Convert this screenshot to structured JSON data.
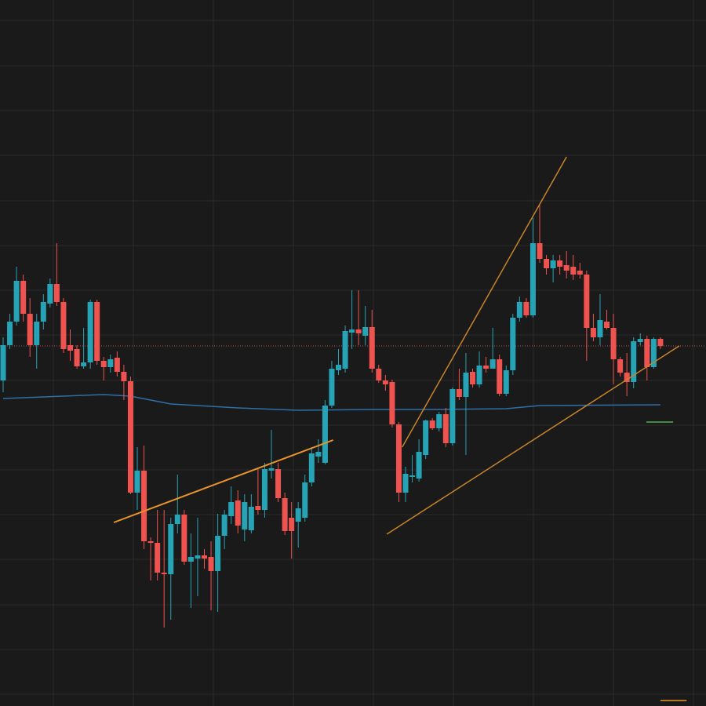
{
  "chart_data": {
    "type": "candlestick",
    "up_color": "#26a3b5",
    "down_color": "#ef5350",
    "ylim": [
      0,
      900
    ],
    "yticks": [
      15,
      72,
      129,
      187,
      244,
      301,
      358,
      415,
      473,
      530,
      587,
      644,
      702,
      759,
      816,
      874
    ],
    "grid": true,
    "open": [
      415,
      460,
      490,
      542,
      500,
      460,
      490,
      513,
      538,
      515,
      460,
      455,
      433,
      438,
      515,
      440,
      432,
      444,
      426,
      414,
      272,
      300,
      210,
      208,
      170,
      168,
      232,
      244,
      184,
      188,
      192,
      190,
      172,
      217,
      242,
      262,
      225,
      224,
      255,
      250,
      300,
      302,
      265,
      240,
      235,
      240,
      285,
      318,
      310,
      383,
      428,
      430,
      476,
      480,
      472,
      483,
      430,
      415,
      413,
      359,
      272,
      292,
      290,
      320,
      364,
      354,
      372,
      335,
      404,
      394,
      426,
      410,
      434,
      430,
      442,
      398,
      428,
      495,
      515,
      498,
      590,
      570,
      558,
      568,
      562,
      560,
      555,
      550,
      482,
      470,
      490,
      482,
      442,
      425,
      413,
      464,
      468,
      432,
      468
    ],
    "high": [
      470,
      500,
      560,
      550,
      520,
      500,
      525,
      545,
      590,
      520,
      480,
      460,
      482,
      518,
      518,
      445,
      448,
      452,
      435,
      420,
      330,
      332,
      215,
      250,
      250,
      240,
      295,
      250,
      220,
      240,
      200,
      210,
      245,
      250,
      280,
      275,
      270,
      270,
      302,
      310,
      352,
      310,
      272,
      260,
      260,
      295,
      330,
      340,
      390,
      440,
      455,
      485,
      530,
      530,
      510,
      505,
      435,
      422,
      416,
      362,
      305,
      320,
      340,
      365,
      367,
      375,
      380,
      406,
      430,
      450,
      430,
      452,
      445,
      482,
      448,
      434,
      500,
      522,
      520,
      622,
      638,
      575,
      575,
      575,
      580,
      575,
      565,
      555,
      500,
      525,
      505,
      500,
      445,
      450,
      470,
      475,
      472,
      470,
      470
    ],
    "low": [
      400,
      455,
      485,
      490,
      445,
      430,
      480,
      508,
      510,
      450,
      440,
      430,
      430,
      430,
      435,
      415,
      425,
      420,
      390,
      270,
      250,
      200,
      160,
      160,
      100,
      110,
      220,
      180,
      125,
      140,
      175,
      122,
      120,
      200,
      232,
      220,
      210,
      220,
      244,
      240,
      290,
      260,
      218,
      188,
      202,
      235,
      280,
      310,
      308,
      380,
      422,
      425,
      455,
      460,
      460,
      425,
      412,
      402,
      355,
      260,
      260,
      285,
      286,
      315,
      352,
      350,
      330,
      332,
      390,
      320,
      406,
      406,
      425,
      430,
      395,
      395,
      422,
      490,
      495,
      495,
      565,
      550,
      540,
      550,
      545,
      543,
      545,
      440,
      465,
      460,
      480,
      410,
      420,
      395,
      405,
      460,
      415,
      430,
      455
    ],
    "close": [
      460,
      490,
      542,
      500,
      460,
      490,
      515,
      538,
      515,
      455,
      453,
      433,
      438,
      515,
      440,
      432,
      442,
      426,
      414,
      272,
      300,
      210,
      208,
      170,
      168,
      232,
      244,
      184,
      190,
      192,
      188,
      172,
      217,
      244,
      260,
      230,
      260,
      254,
      250,
      302,
      303,
      265,
      223,
      223,
      252,
      285,
      322,
      324,
      383,
      430,
      435,
      478,
      480,
      475,
      483,
      430,
      415,
      410,
      359,
      272,
      296,
      294,
      324,
      364,
      354,
      372,
      335,
      404,
      394,
      425,
      410,
      434,
      430,
      442,
      398,
      428,
      495,
      515,
      498,
      590,
      570,
      558,
      568,
      560,
      555,
      550,
      550,
      482,
      470,
      492,
      482,
      442,
      425,
      413,
      465,
      468,
      432,
      468,
      459
    ],
    "moving_average": {
      "color": "#2f6fa8",
      "points": [
        [
          0,
          392
        ],
        [
          15,
          397
        ],
        [
          19,
          395
        ],
        [
          25,
          385
        ],
        [
          35,
          380
        ],
        [
          44,
          377
        ],
        [
          55,
          378
        ],
        [
          64,
          378
        ],
        [
          75,
          379
        ],
        [
          80,
          383
        ],
        [
          98,
          384
        ]
      ]
    },
    "last_price": {
      "value": 459,
      "color": "#c0504d"
    },
    "lines": [
      {
        "color": "#e8962a",
        "points": [
          [
            16.5,
            234
          ],
          [
            49.2,
            339
          ]
        ]
      },
      {
        "color": "#c8842a",
        "points": [
          [
            57.2,
            219
          ],
          [
            100.8,
            459
          ]
        ]
      },
      {
        "color": "#c8842a",
        "points": [
          [
            59.5,
            330
          ],
          [
            84,
            700
          ]
        ]
      },
      {
        "color": "#4caf50",
        "points": [
          [
            95.9,
            362
          ],
          [
            99.9,
            362
          ]
        ]
      },
      {
        "color": "#e8962a",
        "points": [
          [
            98,
            7
          ],
          [
            101.9,
            7
          ]
        ]
      }
    ]
  }
}
